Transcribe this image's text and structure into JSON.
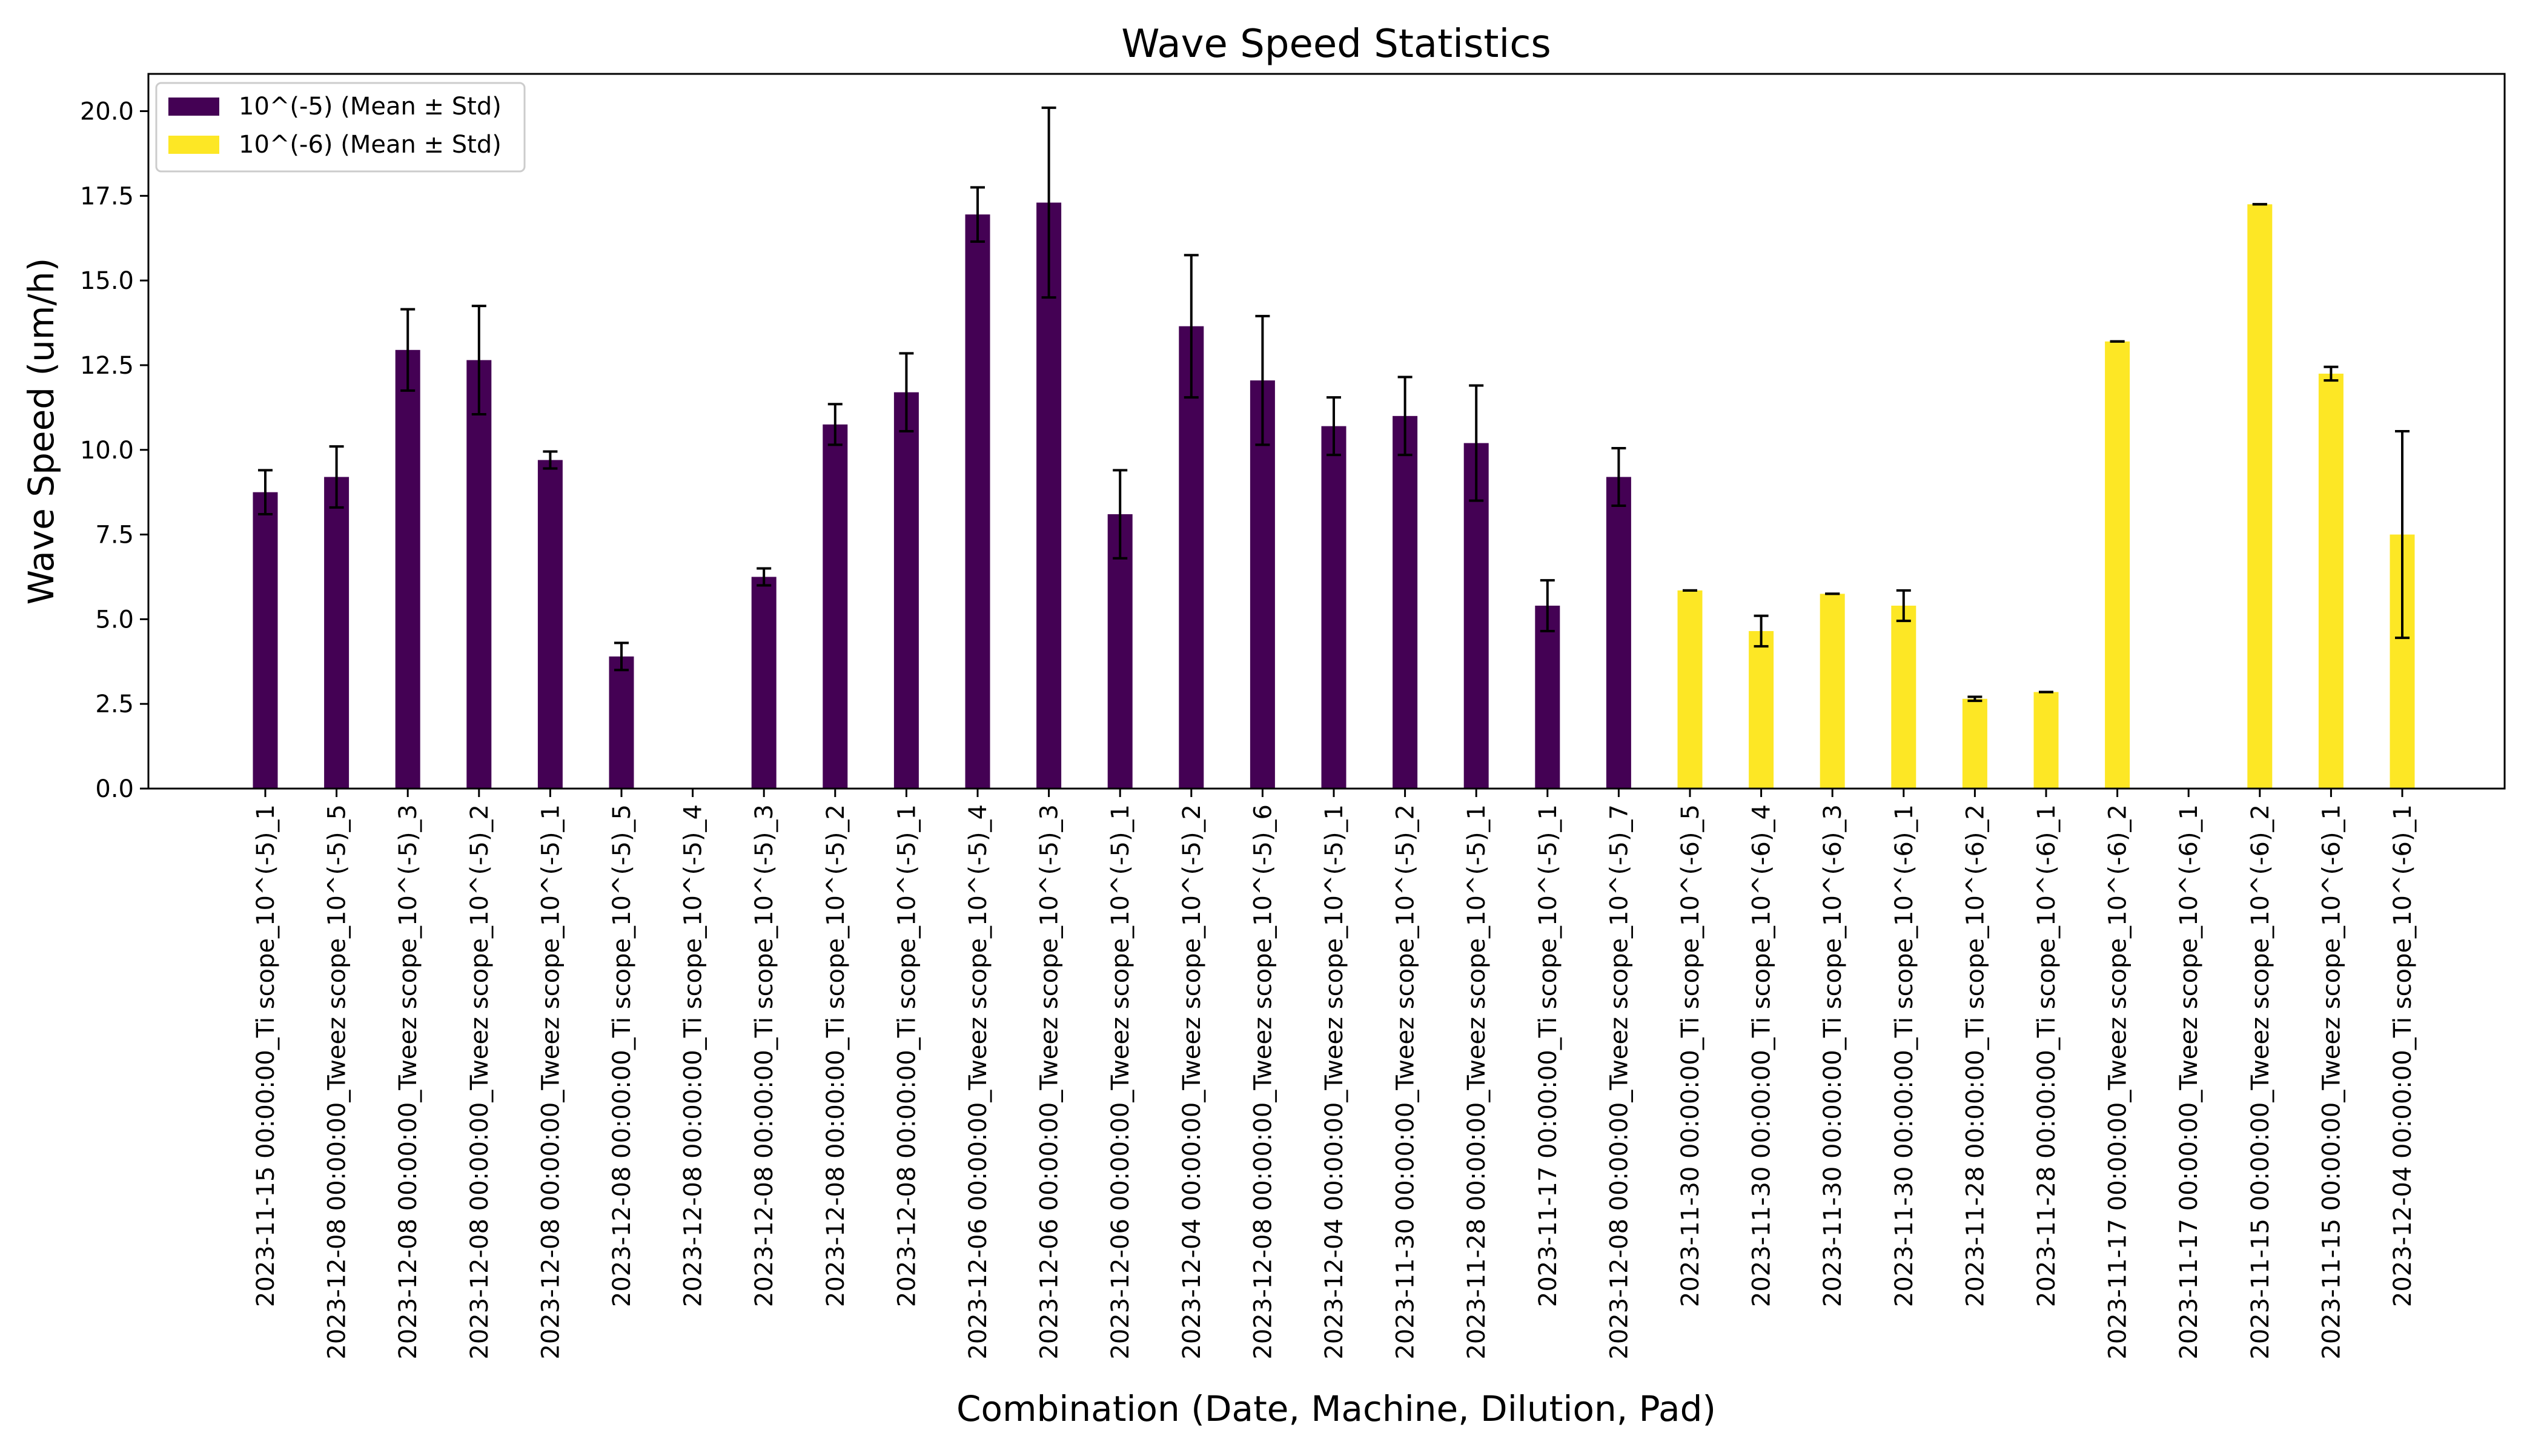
{
  "chart_data": {
    "type": "bar",
    "title": "Wave Speed Statistics",
    "xlabel": "Combination (Date, Machine, Dilution, Pad)",
    "ylabel": "Wave Speed (um/h)",
    "ylim": [
      0,
      21.1
    ],
    "yticks": [
      "0.0",
      "2.5",
      "5.0",
      "7.5",
      "10.0",
      "12.5",
      "15.0",
      "17.5",
      "20.0"
    ],
    "grid": false,
    "legend_position": "top-left",
    "categories": [
      "2023-11-15 00:00:00_Ti scope_10^(-5)_1",
      "2023-12-08 00:00:00_Tweez scope_10^(-5)_5",
      "2023-12-08 00:00:00_Tweez scope_10^(-5)_3",
      "2023-12-08 00:00:00_Tweez scope_10^(-5)_2",
      "2023-12-08 00:00:00_Tweez scope_10^(-5)_1",
      "2023-12-08 00:00:00_Ti scope_10^(-5)_5",
      "2023-12-08 00:00:00_Ti scope_10^(-5)_4",
      "2023-12-08 00:00:00_Ti scope_10^(-5)_3",
      "2023-12-08 00:00:00_Ti scope_10^(-5)_2",
      "2023-12-08 00:00:00_Ti scope_10^(-5)_1",
      "2023-12-06 00:00:00_Tweez scope_10^(-5)_4",
      "2023-12-06 00:00:00_Tweez scope_10^(-5)_3",
      "2023-12-06 00:00:00_Tweez scope_10^(-5)_1",
      "2023-12-04 00:00:00_Tweez scope_10^(-5)_2",
      "2023-12-08 00:00:00_Tweez scope_10^(-5)_6",
      "2023-12-04 00:00:00_Tweez scope_10^(-5)_1",
      "2023-11-30 00:00:00_Tweez scope_10^(-5)_2",
      "2023-11-28 00:00:00_Tweez scope_10^(-5)_1",
      "2023-11-17 00:00:00_Ti scope_10^(-5)_1",
      "2023-12-08 00:00:00_Tweez scope_10^(-5)_7",
      "2023-11-30 00:00:00_Ti scope_10^(-6)_5",
      "2023-11-30 00:00:00_Ti scope_10^(-6)_4",
      "2023-11-30 00:00:00_Ti scope_10^(-6)_3",
      "2023-11-30 00:00:00_Ti scope_10^(-6)_1",
      "2023-11-28 00:00:00_Ti scope_10^(-6)_2",
      "2023-11-28 00:00:00_Ti scope_10^(-6)_1",
      "2023-11-17 00:00:00_Tweez scope_10^(-6)_2",
      "2023-11-17 00:00:00_Tweez scope_10^(-6)_1",
      "2023-11-15 00:00:00_Tweez scope_10^(-6)_2",
      "2023-11-15 00:00:00_Tweez scope_10^(-6)_1",
      "2023-12-04 00:00:00_Ti scope_10^(-6)_1"
    ],
    "series": [
      {
        "name": "10^(-5) (Mean ± Std)",
        "color": "#440154",
        "values": [
          8.75,
          9.2,
          12.95,
          12.65,
          9.7,
          3.9,
          null,
          6.25,
          10.75,
          11.7,
          16.95,
          17.3,
          8.1,
          13.65,
          12.05,
          10.7,
          11.0,
          10.2,
          5.4,
          9.2,
          null,
          null,
          null,
          null,
          null,
          null,
          null,
          null,
          null,
          null,
          null
        ],
        "errors": [
          0.65,
          0.9,
          1.2,
          1.6,
          0.25,
          0.4,
          null,
          0.25,
          0.6,
          1.15,
          0.8,
          2.8,
          1.3,
          2.1,
          1.9,
          0.85,
          1.15,
          1.7,
          0.75,
          0.85,
          null,
          null,
          null,
          null,
          null,
          null,
          null,
          null,
          null,
          null,
          null
        ]
      },
      {
        "name": "10^(-6) (Mean ± Std)",
        "color": "#fde725",
        "values": [
          null,
          null,
          null,
          null,
          null,
          null,
          null,
          null,
          null,
          null,
          null,
          null,
          null,
          null,
          null,
          null,
          null,
          null,
          null,
          null,
          5.85,
          4.65,
          5.75,
          5.4,
          2.65,
          2.85,
          13.2,
          null,
          17.25,
          12.25,
          7.5
        ],
        "errors": [
          null,
          null,
          null,
          null,
          null,
          null,
          null,
          null,
          null,
          null,
          null,
          null,
          null,
          null,
          null,
          null,
          null,
          null,
          null,
          null,
          0,
          0.45,
          0,
          0.45,
          0.06,
          0,
          0,
          null,
          0,
          0.2,
          3.05
        ]
      }
    ]
  }
}
